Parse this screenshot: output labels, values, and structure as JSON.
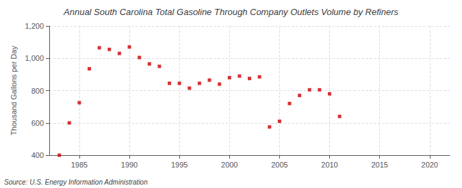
{
  "chart_data": {
    "type": "scatter",
    "title": "Annual South Carolina Total Gasoline Through Company Outlets Volume by Refiners",
    "y_label": "Thousand Gallons per Day",
    "annotations": [
      "Source: U.S. Energy Information Administration"
    ],
    "color": "#cc0000",
    "marker": "square",
    "grid": true,
    "x": [
      1983,
      1984,
      1985,
      1986,
      1987,
      1988,
      1989,
      1990,
      1991,
      1992,
      1993,
      1994,
      1995,
      1996,
      1997,
      1998,
      1999,
      2000,
      2001,
      2002,
      2003,
      2004,
      2005,
      2006,
      2007,
      2008,
      2009,
      2010,
      2011
    ],
    "values": [
      400,
      600,
      725,
      935,
      1065,
      1055,
      1030,
      1070,
      1005,
      965,
      950,
      845,
      845,
      815,
      845,
      865,
      840,
      880,
      890,
      875,
      885,
      575,
      610,
      720,
      770,
      805,
      805,
      780,
      640
    ],
    "xlim": [
      1982,
      2022
    ],
    "xticks": [
      1985,
      1990,
      1995,
      2000,
      2005,
      2010,
      2015,
      2020
    ],
    "ylim": [
      400,
      1200
    ],
    "yticks": [
      400,
      600,
      800,
      {
        "value": 1000,
        "label": "1,000"
      },
      {
        "value": 1200,
        "label": "1,200"
      }
    ]
  }
}
